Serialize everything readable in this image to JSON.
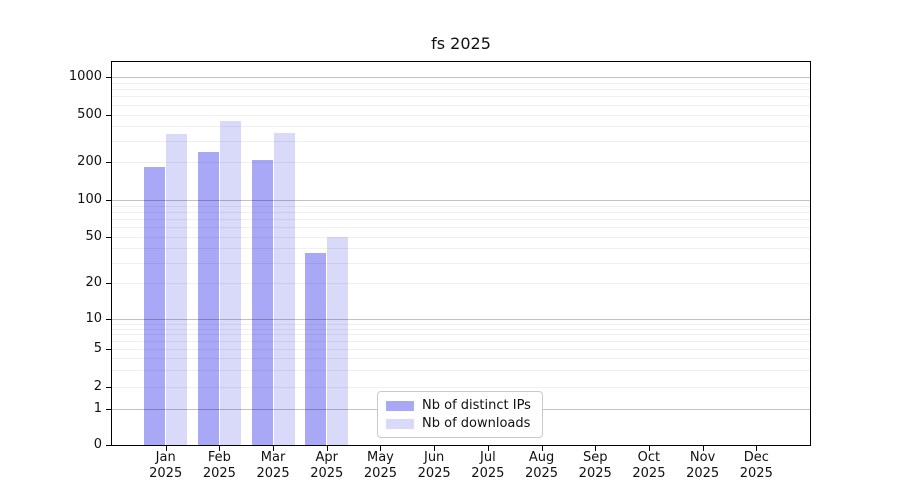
{
  "chart_data": {
    "type": "bar",
    "title": "fs 2025",
    "categories": [
      "Jan 2025",
      "Feb 2025",
      "Mar 2025",
      "Apr 2025",
      "May 2025",
      "Jun 2025",
      "Jul 2025",
      "Aug 2025",
      "Sep 2025",
      "Oct 2025",
      "Nov 2025",
      "Dec 2025"
    ],
    "series": [
      {
        "name": "Nb of distinct IPs",
        "key": "distinct-ips",
        "color": "#a8a8f6",
        "values": [
          182,
          241,
          208,
          36,
          null,
          null,
          null,
          null,
          null,
          null,
          null,
          null
        ]
      },
      {
        "name": "Nb of downloads",
        "key": "downloads",
        "color": "#d9d9f9",
        "values": [
          344,
          438,
          350,
          50,
          null,
          null,
          null,
          null,
          null,
          null,
          null,
          null
        ]
      }
    ],
    "yscale": "symlog",
    "yticks": [
      0,
      1,
      2,
      5,
      10,
      20,
      50,
      100,
      200,
      500,
      1000
    ],
    "ylim": [
      0,
      1300
    ],
    "xlabel": "",
    "ylabel": "",
    "grid": {
      "axis": "y",
      "minor": true
    },
    "legend_position": "lower-center",
    "colors": {
      "major_grid": "#c9c9c9",
      "minor_grid": "#f0f0f0",
      "spine": "#000000",
      "background": "#ffffff"
    }
  }
}
